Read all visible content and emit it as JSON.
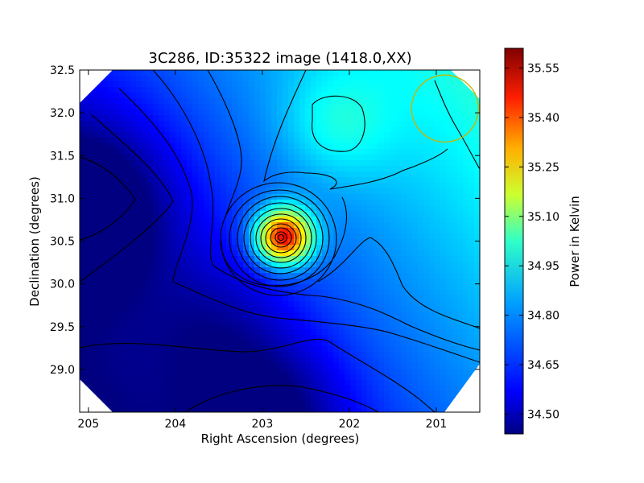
{
  "chart_data": {
    "type": "heatmap",
    "title": "3C286, ID:35322 image (1418.0,XX)",
    "xlabel": "Right Ascension (degrees)",
    "ylabel": "Declination (degrees)",
    "xlim": [
      205.1,
      200.5
    ],
    "ylim": [
      28.5,
      32.5
    ],
    "x_ticks": [
      205,
      204,
      203,
      202,
      201
    ],
    "y_ticks": [
      29.0,
      29.5,
      30.0,
      30.5,
      31.0,
      31.5,
      32.0,
      32.5
    ],
    "x_tick_labels": [
      "205",
      "204",
      "203",
      "202",
      "201"
    ],
    "y_tick_labels": [
      "29.0",
      "29.5",
      "30.0",
      "30.5",
      "31.0",
      "31.5",
      "32.0",
      "32.5"
    ],
    "colorbar": {
      "label": "Power in Kelvin",
      "range": [
        34.44,
        35.61
      ],
      "ticks": [
        34.5,
        34.65,
        34.8,
        34.95,
        35.1,
        35.25,
        35.4,
        35.55
      ],
      "tick_labels": [
        "34.50",
        "34.65",
        "34.80",
        "34.95",
        "35.10",
        "35.25",
        "35.40",
        "35.55"
      ],
      "colormap": "jet"
    },
    "features": [
      {
        "kind": "peak",
        "ra": 202.75,
        "dec": 30.55,
        "value": 35.59
      },
      {
        "kind": "local-max",
        "ra": 202.15,
        "dec": 31.85,
        "value": 35.05
      },
      {
        "kind": "minimum",
        "ra": 205.05,
        "dec": 30.9,
        "value": 34.45
      },
      {
        "kind": "minimum",
        "ra": 202.9,
        "dec": 28.5,
        "value": 34.48
      }
    ],
    "beam_circle": {
      "ra": 200.9,
      "dec": 32.05,
      "radius_deg": 0.35,
      "color": "#c8b400"
    },
    "contour_color": "#000000"
  }
}
